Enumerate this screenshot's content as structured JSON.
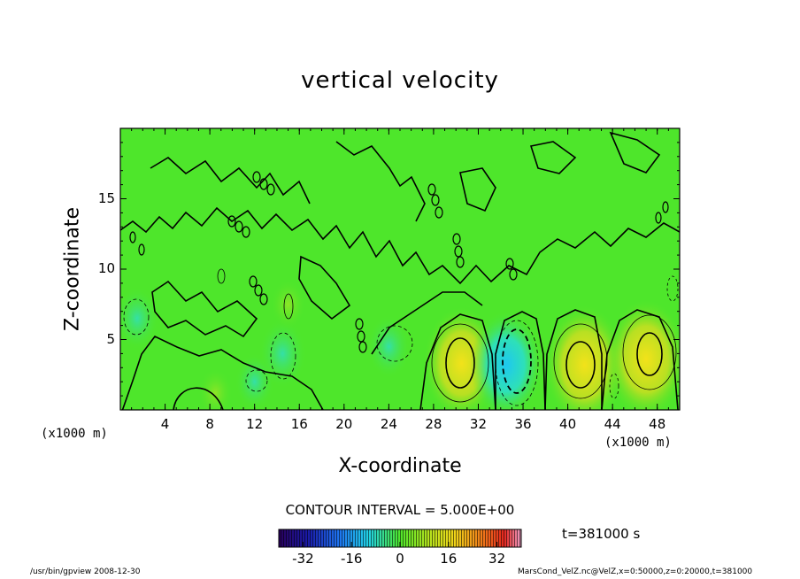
{
  "chart_data": {
    "type": "heatmap",
    "title": "vertical velocity",
    "xlabel": "X-coordinate",
    "ylabel": "Z-coordinate",
    "x_unit_left": "(x1000 m)",
    "x_unit_right": "(x1000 m)",
    "x_ticks": [
      "4",
      "8",
      "12",
      "16",
      "20",
      "24",
      "28",
      "32",
      "36",
      "40",
      "44",
      "48"
    ],
    "y_ticks": [
      "5",
      "10",
      "15"
    ],
    "xlim": [
      0,
      50
    ],
    "ylim": [
      0,
      20
    ],
    "contour_interval_label": "CONTOUR INTERVAL = 5.000E+00",
    "time_label": "t=381000 s",
    "colorbar": {
      "ticks": [
        "-32",
        "-16",
        "0",
        "16",
        "32"
      ],
      "range": [
        -40,
        40
      ]
    },
    "features": [
      {
        "x": 30.5,
        "z": 3.3,
        "value": 14,
        "kind": "updraft"
      },
      {
        "x": 34.5,
        "z": 3.2,
        "value": -13,
        "kind": "downdraft"
      },
      {
        "x": 41.5,
        "z": 3.2,
        "value": 15,
        "kind": "updraft"
      },
      {
        "x": 47.0,
        "z": 3.6,
        "value": 15,
        "kind": "updraft"
      },
      {
        "x": 24.0,
        "z": 4.5,
        "value": -6,
        "kind": "downdraft"
      },
      {
        "x": 14.5,
        "z": 4.0,
        "value": -7,
        "kind": "downdraft"
      },
      {
        "x": 1.5,
        "z": 6.5,
        "value": -6,
        "kind": "downdraft"
      },
      {
        "x": 12.0,
        "z": 2.0,
        "value": -5,
        "kind": "downdraft"
      },
      {
        "x": 8.5,
        "z": 1.2,
        "value": 4,
        "kind": "updraft"
      },
      {
        "x": 15.0,
        "z": 7.5,
        "value": 4,
        "kind": "updraft"
      }
    ],
    "grid": false,
    "legend": "colorbar-bottom"
  },
  "footer": {
    "left": "/usr/bin/gpview  2008-12-30",
    "right": "MarsCond_VelZ.nc@VelZ,x=0:50000,z=0:20000,t=381000"
  },
  "colors": {
    "background_field": "#4ee62b",
    "contour": "#000000"
  }
}
